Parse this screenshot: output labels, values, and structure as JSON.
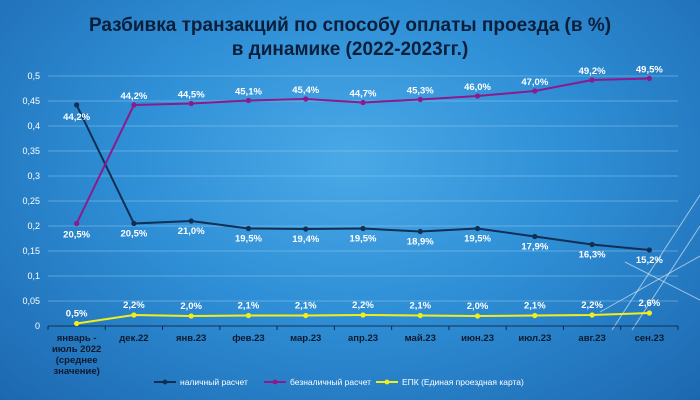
{
  "title_line1": "Разбивка транзакций по способу оплаты проезда (в %)",
  "title_line2": "в динамике (2022-2023гг.)",
  "chart_data": {
    "type": "line",
    "categories": [
      [
        "январь -",
        "июль 2022",
        "(среднее",
        "значение)"
      ],
      [
        "дек.22"
      ],
      [
        "янв.23"
      ],
      [
        "фев.23"
      ],
      [
        "мар.23"
      ],
      [
        "апр.23"
      ],
      [
        "май.23"
      ],
      [
        "июн.23"
      ],
      [
        "июл.23"
      ],
      [
        "авг.23"
      ],
      [
        "сен.23"
      ]
    ],
    "ylim": [
      0,
      0.5
    ],
    "yticks": [
      "0",
      "0,05",
      "0,1",
      "0,15",
      "0,2",
      "0,25",
      "0,3",
      "0,35",
      "0,4",
      "0,45",
      "0,5"
    ],
    "grid": true,
    "legend_position": "bottom",
    "series": [
      {
        "name": "наличный расчет",
        "color": "#0f2f55",
        "values": [
          0.442,
          0.205,
          0.21,
          0.195,
          0.194,
          0.195,
          0.189,
          0.195,
          0.179,
          0.163,
          0.152
        ],
        "labels": [
          "44,2%",
          "20,5%",
          "21,0%",
          "19,5%",
          "19,4%",
          "19,5%",
          "18,9%",
          "19,5%",
          "17,9%",
          "16,3%",
          "15,2%"
        ]
      },
      {
        "name": "безналичный расчет",
        "color": "#8b1a8c",
        "values": [
          0.205,
          0.442,
          0.445,
          0.451,
          0.454,
          0.447,
          0.453,
          0.46,
          0.47,
          0.492,
          0.495
        ],
        "labels": [
          "20,5%",
          "44,2%",
          "44,5%",
          "45,1%",
          "45,4%",
          "44,7%",
          "45,3%",
          "46,0%",
          "47,0%",
          "49,2%",
          "49,5%"
        ]
      },
      {
        "name": "ЕПК (Единая проездная карта)",
        "color": "#f2ee1c",
        "values": [
          0.005,
          0.022,
          0.02,
          0.021,
          0.021,
          0.022,
          0.021,
          0.02,
          0.021,
          0.022,
          0.026
        ],
        "labels": [
          "0,5%",
          "2,2%",
          "2,0%",
          "2,1%",
          "2,1%",
          "2,2%",
          "2,1%",
          "2,0%",
          "2,1%",
          "2,2%",
          "2,6%"
        ]
      }
    ]
  }
}
